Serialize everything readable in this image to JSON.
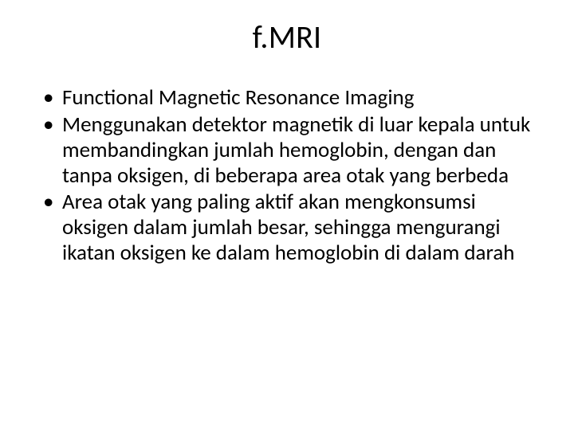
{
  "slide": {
    "title": "f.MRI",
    "title_fontsize": 40,
    "body_fontsize": 27,
    "background_color": "#ffffff",
    "text_color": "#000000",
    "bullet_char": "•",
    "bullets": [
      "Functional Magnetic Resonance Imaging",
      "Menggunakan detektor magnetik di luar kepala untuk membandingkan jumlah hemoglobin, dengan dan tanpa oksigen, di beberapa area otak yang berbeda",
      "Area otak yang paling aktif akan mengkonsumsi oksigen dalam jumlah besar, sehingga mengurangi ikatan oksigen ke dalam hemoglobin di dalam darah"
    ]
  }
}
